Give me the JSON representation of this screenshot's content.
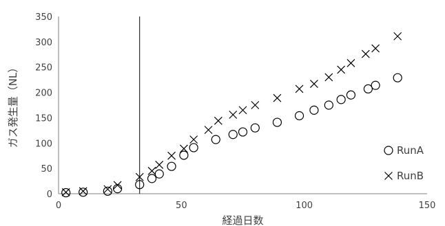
{
  "chart_data": {
    "type": "scatter",
    "title": "",
    "xlabel": "経過日数",
    "ylabel": "ガス発生量（NL）",
    "xlim": [
      0,
      150
    ],
    "ylim": [
      0,
      350
    ],
    "x_ticks": [
      0,
      50,
      100,
      150
    ],
    "y_ticks": [
      0,
      50,
      100,
      150,
      200,
      250,
      300,
      350
    ],
    "grid": false,
    "legend_position": "right",
    "vertical_marker_x": 33,
    "series": [
      {
        "name": "RunA",
        "marker": "circle",
        "x": [
          3,
          10,
          20,
          24,
          33,
          38,
          41,
          46,
          51,
          55,
          64,
          71,
          75,
          80,
          89,
          98,
          104,
          110,
          115,
          119,
          126,
          129,
          138
        ],
        "y": [
          2,
          3,
          5,
          10,
          18,
          30,
          39,
          54,
          76,
          91,
          107,
          117,
          122,
          130,
          141,
          154,
          165,
          175,
          186,
          195,
          207,
          214,
          229
        ]
      },
      {
        "name": "RunB",
        "marker": "x",
        "x": [
          3,
          10,
          20,
          24,
          33,
          38,
          41,
          46,
          51,
          55,
          61,
          65,
          71,
          75,
          80,
          89,
          98,
          104,
          110,
          115,
          119,
          125,
          129,
          138
        ],
        "y": [
          3,
          5,
          9,
          17,
          33,
          45,
          57,
          75,
          89,
          107,
          126,
          144,
          156,
          165,
          175,
          189,
          207,
          217,
          230,
          245,
          258,
          276,
          287,
          311
        ]
      }
    ]
  }
}
